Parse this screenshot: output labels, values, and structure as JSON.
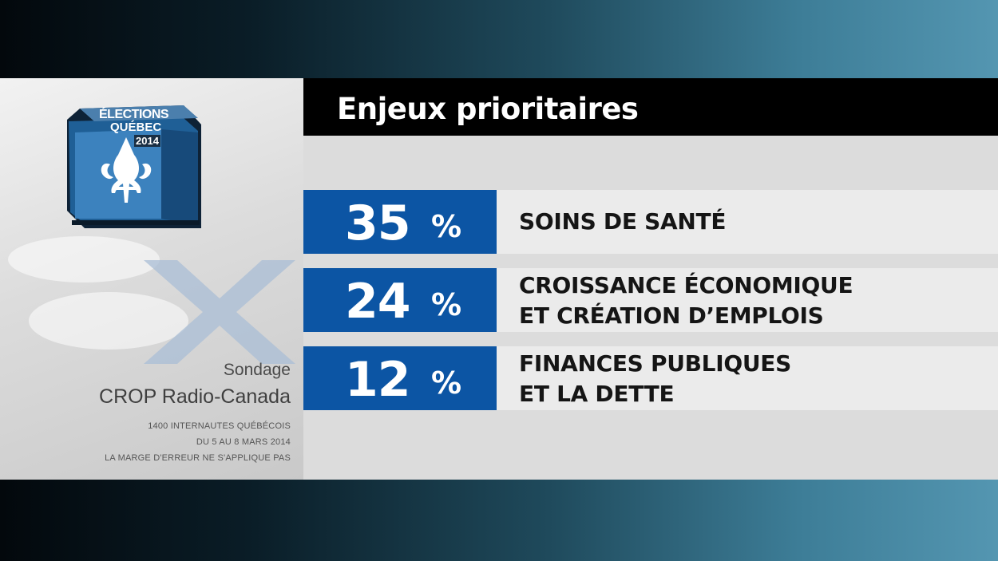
{
  "title": "Enjeux prioritaires",
  "logo": {
    "line1": "ÉLECTIONS",
    "line2": "QUÉBEC",
    "line3": "2014"
  },
  "source": {
    "label": "Sondage",
    "name": "CROP Radio-Canada",
    "notes": [
      "1400 INTERNAUTES QUÉBÉCOIS",
      "DU 5 AU 8 MARS 2014",
      "LA MARGE D'ERREUR NE S'APPLIQUE PAS"
    ]
  },
  "percent_sign": "%",
  "colors": {
    "bar": "#0c55a4",
    "title_bar": "#000000",
    "label_bg": "#ebebeb"
  },
  "chart_data": {
    "type": "bar",
    "title": "Enjeux prioritaires",
    "categories": [
      "SOINS DE SANTÉ",
      "CROISSANCE ÉCONOMIQUE\nET CRÉATION D’EMPLOIS",
      "FINANCES PUBLIQUES\nET LA DETTE"
    ],
    "values": [
      35,
      24,
      12
    ],
    "value_labels": [
      "35",
      "24",
      "12"
    ],
    "unit": "%"
  }
}
